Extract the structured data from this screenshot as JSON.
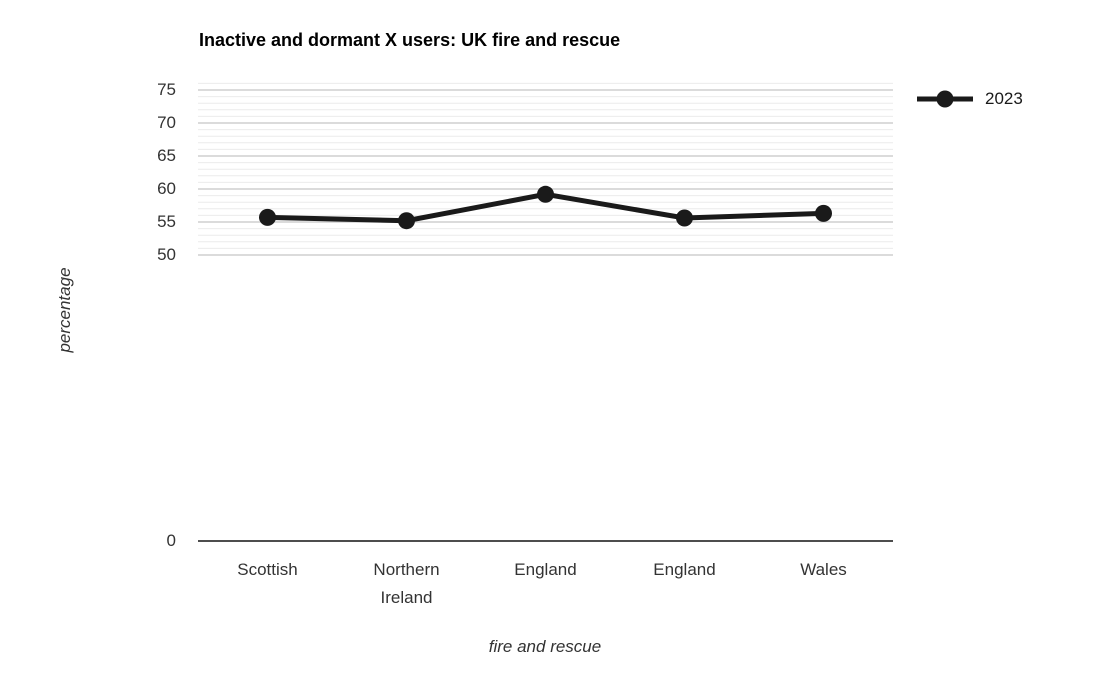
{
  "chart_data": {
    "type": "line",
    "title": "Inactive and dormant X users: UK fire and rescue",
    "xlabel": "fire and rescue",
    "ylabel": "percentage",
    "categories": [
      "Scottish",
      "Northern Ireland",
      "England",
      "England",
      "Wales"
    ],
    "series": [
      {
        "name": "2023",
        "values": [
          55.7,
          55.2,
          59.2,
          55.6,
          56.3
        ]
      }
    ],
    "y_ticks": [
      75,
      70,
      65,
      60,
      55,
      50
    ],
    "origin_tick": "0",
    "ylim": [
      50,
      76
    ],
    "grid": "horizontal; minor every 1 unit, major every 5 units",
    "legend_position": "top-right",
    "colors": {
      "series": "#1a1a1a",
      "title_text": "#000000",
      "tick_text": "#333333",
      "axis_line": "#4d4d4d",
      "grid_major": "#cfcfcf",
      "grid_minor": "#ebebeb",
      "background": "#ffffff"
    }
  }
}
